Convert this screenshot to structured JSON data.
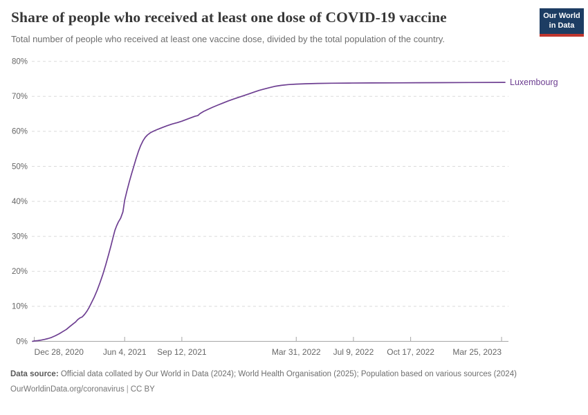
{
  "header": {
    "title": "Share of people who received at least one dose of COVID-19 vaccine",
    "subtitle": "Total number of people who received at least one vaccine dose, divided by the total population of the country."
  },
  "logo": {
    "line1": "Our World",
    "line2": "in Data",
    "bg_color": "#1d3d63",
    "bar_color": "#c0362e"
  },
  "footer": {
    "source_label": "Data source:",
    "source_text": " Official data collated by Our World in Data (2024); World Health Organisation (2025); Population based on various sources (2024)",
    "link": "OurWorldinData.org/coronavirus",
    "separator": "|",
    "license": "CC BY"
  },
  "chart_data": {
    "type": "line",
    "title": "Share of people who received at least one dose of COVID-19 vaccine",
    "subtitle": "Total number of people who received at least one vaccine dose, divided by the total population of the country.",
    "grid": true,
    "legend_position": "line-end-label",
    "x_axis": {
      "unit": "date",
      "day0_date": "2020-12-28",
      "domain_start_day": -4.3,
      "domain_end_day": 829,
      "ticks": [
        {
          "day": 0,
          "label": "Dec 28, 2020",
          "anchor": "start"
        },
        {
          "day": 158,
          "label": "Jun 4, 2021",
          "anchor": "middle"
        },
        {
          "day": 258,
          "label": "Sep 12, 2021",
          "anchor": "middle"
        },
        {
          "day": 458,
          "label": "Mar 31, 2022",
          "anchor": "middle"
        },
        {
          "day": 558,
          "label": "Jul 9, 2022",
          "anchor": "middle"
        },
        {
          "day": 658,
          "label": "Oct 17, 2022",
          "anchor": "middle"
        },
        {
          "day": 817,
          "label": "Mar 25, 2023",
          "anchor": "end"
        }
      ]
    },
    "y_axis": {
      "unit": "%",
      "min": 0,
      "max": 80,
      "ticks": [
        {
          "value": 0,
          "label": "0%"
        },
        {
          "value": 10,
          "label": "10%"
        },
        {
          "value": 20,
          "label": "20%"
        },
        {
          "value": 30,
          "label": "30%"
        },
        {
          "value": 40,
          "label": "40%"
        },
        {
          "value": 50,
          "label": "50%"
        },
        {
          "value": 60,
          "label": "60%"
        },
        {
          "value": 70,
          "label": "70%"
        },
        {
          "value": 80,
          "label": "80%"
        }
      ]
    },
    "series": [
      {
        "name": "Luxembourg",
        "color": "#6D3E91",
        "points": [
          [
            -3,
            0
          ],
          [
            0,
            0.1
          ],
          [
            6,
            0.2
          ],
          [
            12,
            0.35
          ],
          [
            18,
            0.55
          ],
          [
            24,
            0.8
          ],
          [
            30,
            1.1
          ],
          [
            37,
            1.6
          ],
          [
            44,
            2.2
          ],
          [
            50,
            2.8
          ],
          [
            56,
            3.4
          ],
          [
            62,
            4.2
          ],
          [
            68,
            5.0
          ],
          [
            72,
            5.5
          ],
          [
            76,
            6.2
          ],
          [
            80,
            6.7
          ],
          [
            84,
            7.0
          ],
          [
            88,
            7.7
          ],
          [
            92,
            8.6
          ],
          [
            96,
            9.7
          ],
          [
            100,
            11.0
          ],
          [
            105,
            12.7
          ],
          [
            110,
            14.6
          ],
          [
            115,
            16.8
          ],
          [
            120,
            19.2
          ],
          [
            125,
            21.9
          ],
          [
            130,
            24.8
          ],
          [
            134,
            27.3
          ],
          [
            138,
            29.9
          ],
          [
            141,
            31.7
          ],
          [
            144,
            33.0
          ],
          [
            147,
            34.1
          ],
          [
            151,
            35.2
          ],
          [
            155,
            37.0
          ],
          [
            158,
            40.3
          ],
          [
            162,
            43.0
          ],
          [
            166,
            45.5
          ],
          [
            170,
            47.8
          ],
          [
            174,
            50.0
          ],
          [
            178,
            52.2
          ],
          [
            182,
            54.2
          ],
          [
            186,
            55.9
          ],
          [
            190,
            57.3
          ],
          [
            194,
            58.3
          ],
          [
            198,
            59.0
          ],
          [
            203,
            59.6
          ],
          [
            209,
            60.1
          ],
          [
            216,
            60.6
          ],
          [
            224,
            61.1
          ],
          [
            232,
            61.6
          ],
          [
            241,
            62.1
          ],
          [
            250,
            62.5
          ],
          [
            258,
            62.9
          ],
          [
            266,
            63.4
          ],
          [
            274,
            63.9
          ],
          [
            281,
            64.3
          ],
          [
            286,
            64.5
          ],
          [
            290,
            65.1
          ],
          [
            296,
            65.7
          ],
          [
            304,
            66.3
          ],
          [
            312,
            66.9
          ],
          [
            321,
            67.5
          ],
          [
            330,
            68.1
          ],
          [
            339,
            68.7
          ],
          [
            348,
            69.2
          ],
          [
            357,
            69.7
          ],
          [
            366,
            70.2
          ],
          [
            375,
            70.7
          ],
          [
            384,
            71.2
          ],
          [
            393,
            71.7
          ],
          [
            402,
            72.1
          ],
          [
            412,
            72.5
          ],
          [
            422,
            72.9
          ],
          [
            432,
            73.15
          ],
          [
            444,
            73.35
          ],
          [
            458,
            73.5
          ],
          [
            474,
            73.6
          ],
          [
            495,
            73.7
          ],
          [
            520,
            73.75
          ],
          [
            550,
            73.8
          ],
          [
            590,
            73.83
          ],
          [
            630,
            73.86
          ],
          [
            670,
            73.89
          ],
          [
            710,
            73.92
          ],
          [
            760,
            73.96
          ],
          [
            823,
            74.0
          ]
        ]
      }
    ]
  },
  "colors": {
    "grid": "#dadada",
    "axis": "#a5a5a5",
    "axis_text": "#666666",
    "series": "#6D3E91"
  }
}
